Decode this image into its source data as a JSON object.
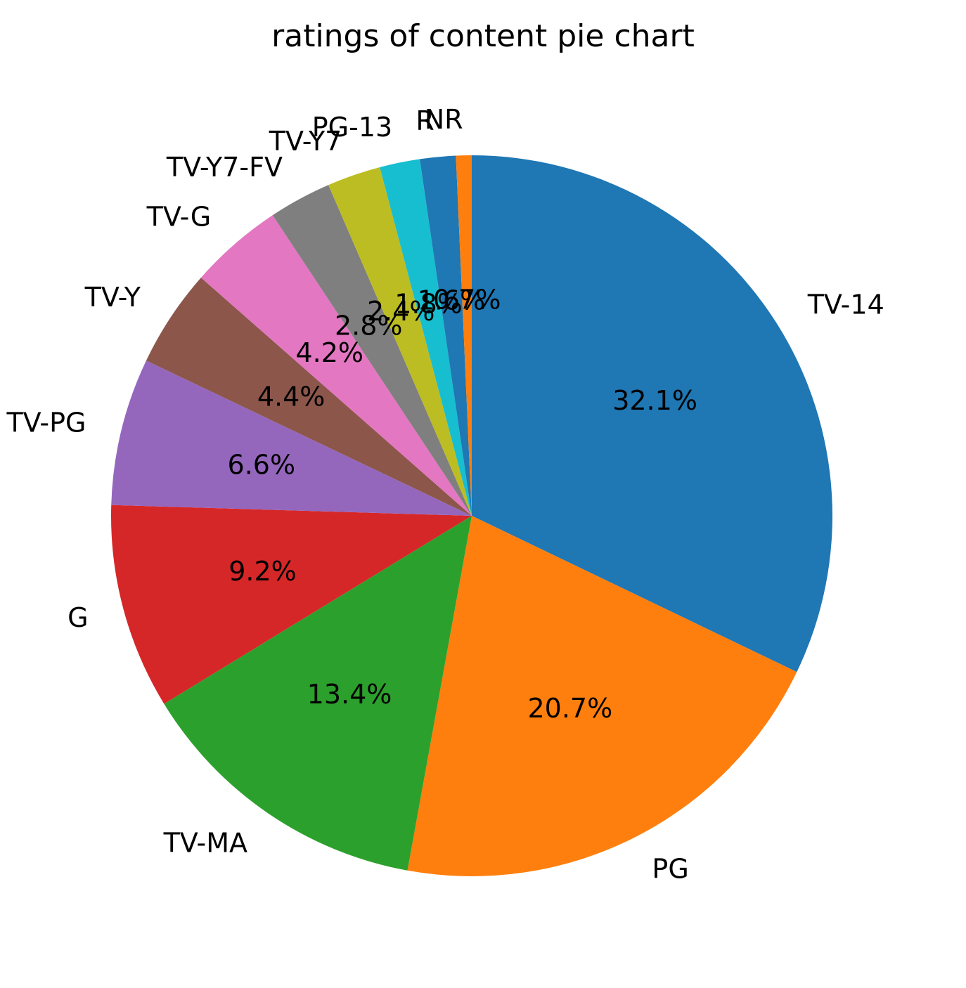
{
  "chart_data": {
    "type": "pie",
    "title": "ratings of content pie chart",
    "start_angle_deg": 90,
    "direction": "clockwise",
    "slices": [
      {
        "label": "TV-14",
        "pct": 32.1,
        "pct_text": "32.1%",
        "color": "#1f77b4"
      },
      {
        "label": "PG",
        "pct": 20.7,
        "pct_text": "20.7%",
        "color": "#ff7f0e"
      },
      {
        "label": "TV-MA",
        "pct": 13.4,
        "pct_text": "13.4%",
        "color": "#2ca02c"
      },
      {
        "label": "G",
        "pct": 9.2,
        "pct_text": "9.2%",
        "color": "#d62728"
      },
      {
        "label": "TV-PG",
        "pct": 6.6,
        "pct_text": "6.6%",
        "color": "#9467bd"
      },
      {
        "label": "TV-Y",
        "pct": 4.4,
        "pct_text": "4.4%",
        "color": "#8c564b"
      },
      {
        "label": "TV-G",
        "pct": 4.2,
        "pct_text": "4.2%",
        "color": "#e377c2"
      },
      {
        "label": "TV-Y7-FV",
        "pct": 2.8,
        "pct_text": "2.8%",
        "color": "#7f7f7f"
      },
      {
        "label": "TV-Y7",
        "pct": 2.4,
        "pct_text": "2.4%",
        "color": "#bcbd22"
      },
      {
        "label": "PG-13",
        "pct": 1.8,
        "pct_text": "1.8%",
        "color": "#17becf"
      },
      {
        "label": "R",
        "pct": 1.6,
        "pct_text": "1.6%",
        "color": "#1f77b4"
      },
      {
        "label": "NR",
        "pct": 0.7,
        "pct_text": "0.7%",
        "color": "#ff7f0e"
      }
    ]
  }
}
